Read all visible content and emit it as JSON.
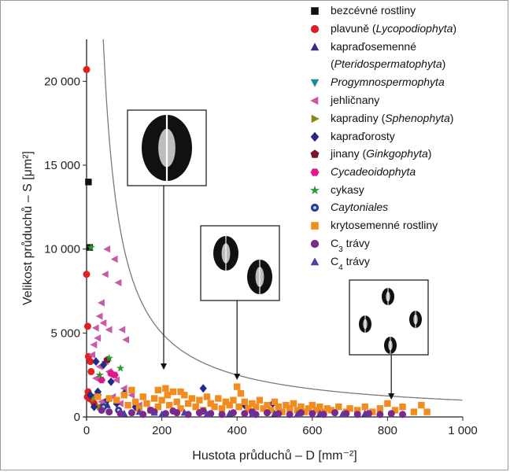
{
  "chart_data": {
    "type": "scatter",
    "xlabel": "Hustota průduchů – D [mm⁻²]",
    "ylabel": "Velikost průduchů – S [μm²]",
    "xlim": [
      0,
      1000
    ],
    "ylim": [
      0,
      22500
    ],
    "x_ticks": [
      "0",
      "200",
      "400",
      "600",
      "800",
      "1 000"
    ],
    "y_ticks": [
      "0",
      "5 000",
      "10 000",
      "15 000",
      "20 000"
    ],
    "legend_placement": "top-right",
    "grid": false,
    "curve": {
      "description": "hyperbolic boundary S·D ≈ const",
      "xy_product": 1000000
    },
    "insets": [
      {
        "points_to_x": 205
      },
      {
        "points_to_x": 400
      },
      {
        "points_to_x": 810
      }
    ],
    "series": [
      {
        "name": "bezcévné rostliny",
        "marker": "square",
        "color": "#111111",
        "points": [
          [
            5,
            14000
          ],
          [
            8,
            10100
          ]
        ]
      },
      {
        "name": "plavuně (Lycopodiophyta)",
        "marker": "circle",
        "color": "#e02020",
        "points": [
          [
            0,
            20700
          ],
          [
            0,
            8500
          ],
          [
            3,
            5400
          ],
          [
            5,
            3600
          ],
          [
            10,
            3300
          ],
          [
            12,
            2700
          ],
          [
            4,
            1500
          ],
          [
            8,
            1100
          ],
          [
            15,
            1000
          ],
          [
            20,
            800
          ],
          [
            30,
            1300
          ],
          [
            2,
            1200
          ],
          [
            40,
            600
          ]
        ]
      },
      {
        "name": "kapraďosemenné (Pteridospermatophyta)",
        "marker": "triangle-up",
        "color": "#2b2e8c",
        "points": [
          [
            30,
            1500
          ],
          [
            55,
            700
          ],
          [
            80,
            900
          ]
        ]
      },
      {
        "name": "Progymnospermophyta",
        "marker": "triangle-down",
        "color": "#1f8f8f",
        "points": [
          [
            20,
            1200
          ],
          [
            45,
            800
          ]
        ]
      },
      {
        "name": "jehličnany",
        "marker": "triangle-left",
        "color": "#c85aa8",
        "points": [
          [
            55,
            10000
          ],
          [
            75,
            9400
          ],
          [
            85,
            8000
          ],
          [
            50,
            8500
          ],
          [
            40,
            6800
          ],
          [
            35,
            6000
          ],
          [
            25,
            5300
          ],
          [
            30,
            4700
          ],
          [
            45,
            5600
          ],
          [
            60,
            5200
          ],
          [
            95,
            5200
          ],
          [
            105,
            4600
          ],
          [
            20,
            4300
          ],
          [
            15,
            3700
          ],
          [
            35,
            3000
          ],
          [
            50,
            3300
          ],
          [
            65,
            2500
          ],
          [
            80,
            2200
          ],
          [
            100,
            1700
          ],
          [
            120,
            1300
          ],
          [
            70,
            1200
          ],
          [
            40,
            900
          ],
          [
            90,
            800
          ],
          [
            140,
            700
          ],
          [
            25,
            2300
          ],
          [
            60,
            2700
          ]
        ]
      },
      {
        "name": "kapradiny (Sphenophyta)",
        "marker": "triangle-right",
        "color": "#8a8a14",
        "points": [
          [
            20,
            1100
          ],
          [
            35,
            600
          ]
        ]
      },
      {
        "name": "kapraďorosty",
        "marker": "diamond",
        "color": "#252a86",
        "points": [
          [
            25,
            3300
          ],
          [
            45,
            3100
          ],
          [
            65,
            2100
          ],
          [
            30,
            1500
          ],
          [
            55,
            1000
          ],
          [
            100,
            1400
          ],
          [
            80,
            800
          ],
          [
            130,
            600
          ],
          [
            20,
            600
          ],
          [
            420,
            700
          ],
          [
            495,
            800
          ],
          [
            310,
            1700
          ],
          [
            10,
            1300
          ]
        ]
      },
      {
        "name": "jinany (Ginkgophyta)",
        "marker": "pentagon",
        "color": "#7a1428",
        "points": [
          [
            55,
            3400
          ]
        ]
      },
      {
        "name": "Cycadeoidophyta",
        "marker": "hexagon",
        "color": "#e0188a",
        "points": [
          [
            65,
            2600
          ],
          [
            75,
            2500
          ],
          [
            40,
            2200
          ]
        ]
      },
      {
        "name": "cykasy",
        "marker": "star",
        "color": "#2a9a2a",
        "points": [
          [
            12,
            10100
          ],
          [
            60,
            3500
          ],
          [
            90,
            2900
          ],
          [
            35,
            2500
          ]
        ]
      },
      {
        "name": "Caytoniales",
        "marker": "circle-ring",
        "color": "#2a3c9a",
        "points": [
          [
            45,
            600
          ],
          [
            85,
            400
          ]
        ]
      },
      {
        "name": "krytosemenné rostliny",
        "marker": "square",
        "color": "#f28c1e",
        "points": [
          [
            30,
            1200
          ],
          [
            60,
            1100
          ],
          [
            80,
            1000
          ],
          [
            100,
            1300
          ],
          [
            110,
            700
          ],
          [
            130,
            900
          ],
          [
            140,
            500
          ],
          [
            150,
            1200
          ],
          [
            160,
            800
          ],
          [
            170,
            400
          ],
          [
            180,
            1100
          ],
          [
            190,
            600
          ],
          [
            200,
            1000
          ],
          [
            210,
            1700
          ],
          [
            215,
            1300
          ],
          [
            220,
            700
          ],
          [
            230,
            1500
          ],
          [
            240,
            900
          ],
          [
            250,
            500
          ],
          [
            260,
            1300
          ],
          [
            270,
            800
          ],
          [
            280,
            1100
          ],
          [
            290,
            600
          ],
          [
            300,
            1000
          ],
          [
            310,
            400
          ],
          [
            320,
            1200
          ],
          [
            330,
            800
          ],
          [
            340,
            600
          ],
          [
            350,
            1100
          ],
          [
            360,
            500
          ],
          [
            370,
            900
          ],
          [
            380,
            700
          ],
          [
            390,
            1000
          ],
          [
            400,
            1800
          ],
          [
            405,
            600
          ],
          [
            410,
            1400
          ],
          [
            420,
            900
          ],
          [
            430,
            500
          ],
          [
            440,
            800
          ],
          [
            450,
            600
          ],
          [
            460,
            1000
          ],
          [
            470,
            500
          ],
          [
            480,
            700
          ],
          [
            490,
            400
          ],
          [
            500,
            900
          ],
          [
            510,
            600
          ],
          [
            520,
            300
          ],
          [
            530,
            700
          ],
          [
            540,
            500
          ],
          [
            550,
            800
          ],
          [
            560,
            400
          ],
          [
            570,
            600
          ],
          [
            580,
            300
          ],
          [
            590,
            500
          ],
          [
            600,
            700
          ],
          [
            610,
            400
          ],
          [
            620,
            600
          ],
          [
            630,
            300
          ],
          [
            640,
            500
          ],
          [
            650,
            400
          ],
          [
            670,
            600
          ],
          [
            690,
            300
          ],
          [
            700,
            500
          ],
          [
            720,
            400
          ],
          [
            740,
            600
          ],
          [
            760,
            300
          ],
          [
            780,
            500
          ],
          [
            800,
            800
          ],
          [
            820,
            400
          ],
          [
            840,
            600
          ],
          [
            870,
            300
          ],
          [
            890,
            700
          ],
          [
            905,
            300
          ],
          [
            190,
            1600
          ],
          [
            250,
            1500
          ],
          [
            120,
            1600
          ]
        ]
      },
      {
        "name": "C₃ trávy",
        "marker": "circle",
        "color": "#7a2a8e",
        "points": [
          [
            60,
            300
          ],
          [
            90,
            200
          ],
          [
            120,
            250
          ],
          [
            150,
            150
          ],
          [
            180,
            300
          ],
          [
            210,
            200
          ],
          [
            240,
            250
          ],
          [
            270,
            150
          ],
          [
            300,
            250
          ],
          [
            330,
            200
          ],
          [
            360,
            150
          ],
          [
            390,
            250
          ],
          [
            420,
            200
          ],
          [
            450,
            150
          ],
          [
            480,
            250
          ],
          [
            510,
            200
          ],
          [
            540,
            150
          ],
          [
            570,
            250
          ],
          [
            600,
            200
          ],
          [
            630,
            150
          ],
          [
            660,
            250
          ],
          [
            690,
            200
          ],
          [
            720,
            150
          ],
          [
            750,
            200
          ],
          [
            780,
            150
          ],
          [
            810,
            200
          ],
          [
            840,
            150
          ],
          [
            230,
            350
          ],
          [
            170,
            400
          ],
          [
            310,
            350
          ],
          [
            440,
            300
          ],
          [
            40,
            400
          ]
        ]
      },
      {
        "name": "C₄ trávy",
        "marker": "triangle-up",
        "color": "#5a3a9e",
        "points": [
          [
            100,
            200
          ],
          [
            140,
            300
          ],
          [
            200,
            150
          ],
          [
            260,
            250
          ],
          [
            320,
            150
          ],
          [
            380,
            200
          ],
          [
            440,
            150
          ],
          [
            500,
            200
          ],
          [
            560,
            150
          ],
          [
            620,
            200
          ],
          [
            680,
            150
          ],
          [
            740,
            200
          ],
          [
            180,
            250
          ]
        ]
      }
    ]
  }
}
